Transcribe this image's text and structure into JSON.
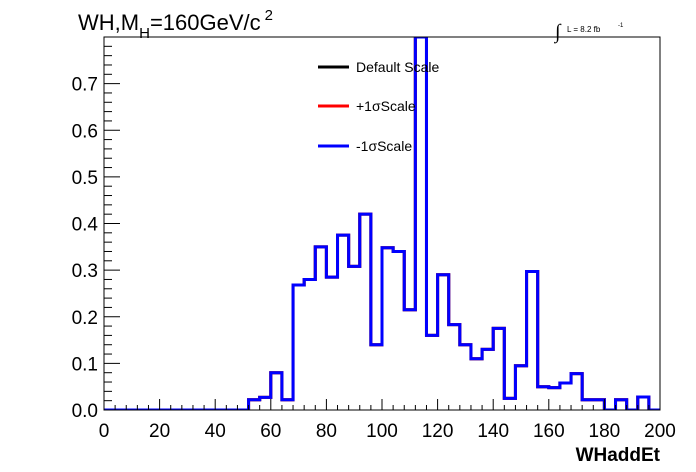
{
  "chart_data": {
    "type": "line",
    "title_parts": {
      "main": "WH,M",
      "sub": "H",
      "rest": "=160GeV/c",
      "sup": "2"
    },
    "luminosity": {
      "symbol": "∫",
      "text": "L = 8.2 fb",
      "exponent": "-1"
    },
    "xlabel": "WHaddEt",
    "xlim": [
      0,
      200
    ],
    "ylim": [
      0,
      0.8
    ],
    "x_ticks": [
      "0",
      "20",
      "40",
      "60",
      "80",
      "100",
      "120",
      "140",
      "160",
      "180",
      "200"
    ],
    "y_ticks": [
      "0.0",
      "0.1",
      "0.2",
      "0.3",
      "0.4",
      "0.5",
      "0.6",
      "0.7"
    ],
    "bin_width": 4,
    "bin_edges_start": 0,
    "legend_position": "top-center",
    "series": [
      {
        "name": "Default Scale",
        "color": "#000000",
        "values": [
          0,
          0,
          0,
          0,
          0,
          0,
          0,
          0,
          0,
          0,
          0,
          0,
          0,
          0.022,
          0.027,
          0.08,
          0.022,
          0.268,
          0.28,
          0.35,
          0.285,
          0.375,
          0.308,
          0.42,
          0.14,
          0.348,
          0.34,
          0.215,
          0.8,
          0.16,
          0.29,
          0.183,
          0.14,
          0.11,
          0.13,
          0.175,
          0.025,
          0.095,
          0.297,
          0.05,
          0.048,
          0.058,
          0.078,
          0.022,
          0.022,
          0,
          0.022,
          0,
          0.028,
          0
        ]
      },
      {
        "name": "+1σScale",
        "color": "#ff0000",
        "values": [
          0,
          0,
          0,
          0,
          0,
          0,
          0,
          0,
          0,
          0,
          0,
          0,
          0,
          0.022,
          0.027,
          0.08,
          0.022,
          0.268,
          0.28,
          0.35,
          0.285,
          0.375,
          0.308,
          0.42,
          0.14,
          0.348,
          0.34,
          0.215,
          0.8,
          0.16,
          0.29,
          0.183,
          0.14,
          0.11,
          0.13,
          0.175,
          0.025,
          0.095,
          0.297,
          0.05,
          0.048,
          0.058,
          0.078,
          0.022,
          0.022,
          0,
          0.022,
          0,
          0.028,
          0
        ]
      },
      {
        "name": "-1σScale",
        "color": "#0000ff",
        "values": [
          0,
          0,
          0,
          0,
          0,
          0,
          0,
          0,
          0,
          0,
          0,
          0,
          0,
          0.022,
          0.027,
          0.08,
          0.022,
          0.268,
          0.28,
          0.35,
          0.285,
          0.375,
          0.308,
          0.42,
          0.14,
          0.348,
          0.34,
          0.215,
          0.8,
          0.16,
          0.29,
          0.183,
          0.14,
          0.11,
          0.13,
          0.175,
          0.025,
          0.095,
          0.297,
          0.05,
          0.048,
          0.058,
          0.078,
          0.022,
          0.022,
          0,
          0.022,
          0,
          0.028,
          0
        ]
      }
    ]
  }
}
